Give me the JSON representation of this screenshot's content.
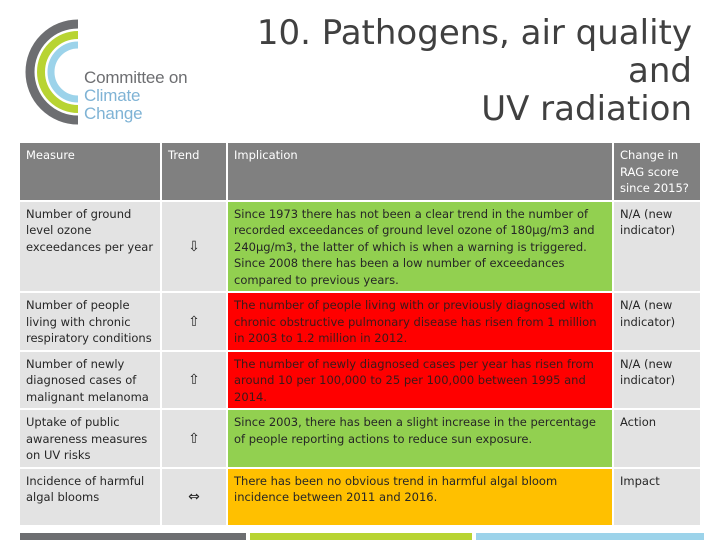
{
  "logo": {
    "line1": "Committee on",
    "line2": "Climate Change"
  },
  "title": {
    "line1": "10. Pathogens, air quality and",
    "line2": "UV radiation"
  },
  "table": {
    "headers": {
      "measure": "Measure",
      "trend": "Trend",
      "implication": "Implication",
      "change": "Change in RAG score since 2015?"
    },
    "rows": [
      {
        "measure": "Number of ground level ozone exceedances per year",
        "trend": "⇩",
        "trend_icon": "down-arrow-icon",
        "implication": "Since 1973 there has not been a clear trend in the number of recorded exceedances of ground level ozone of 180µg/m3 and 240µg/m3, the latter of which is when a warning is triggered. Since 2008 there has been a low number of exceedances compared to  previous years.",
        "rag": "green",
        "change": "N/A (new indicator)"
      },
      {
        "measure": "Number of people living with chronic respiratory conditions",
        "trend": "⇧",
        "trend_icon": "up-arrow-icon",
        "implication": "The number of people living with or previously diagnosed with chronic obstructive pulmonary disease has risen from 1 million in 2003 to 1.2 million in 2012.",
        "rag": "red",
        "change": "N/A (new indicator)"
      },
      {
        "measure": "Number of newly diagnosed cases of malignant melanoma",
        "trend": "⇧",
        "trend_icon": "up-arrow-icon",
        "implication": "The number of newly diagnosed cases per year has risen from around 10 per 100,000 to 25 per 100,000 between 1995 and 2014.",
        "rag": "red",
        "change": "N/A (new indicator)"
      },
      {
        "measure": "Uptake of public awareness measures on UV risks",
        "trend": "⇧",
        "trend_icon": "up-arrow-icon",
        "implication": "Since 2003, there has been a slight increase in the percentage of people reporting actions to reduce sun exposure.",
        "rag": "green",
        "change": "Action"
      },
      {
        "measure": "Incidence of harmful algal blooms",
        "trend": "⇔",
        "trend_icon": "left-right-arrow-icon",
        "implication": "There has been no obvious trend in harmful algal bloom incidence between 2011 and 2016.",
        "rag": "amber",
        "change": "Impact"
      }
    ]
  },
  "colors": {
    "header_bg": "#808080",
    "cell_bg": "#e3e3e3",
    "green": "#92d050",
    "red": "#ff0000",
    "amber": "#ffc000",
    "logo_grey": "#6d6e71",
    "logo_green": "#b8d432",
    "logo_blue": "#9cd3ea"
  }
}
